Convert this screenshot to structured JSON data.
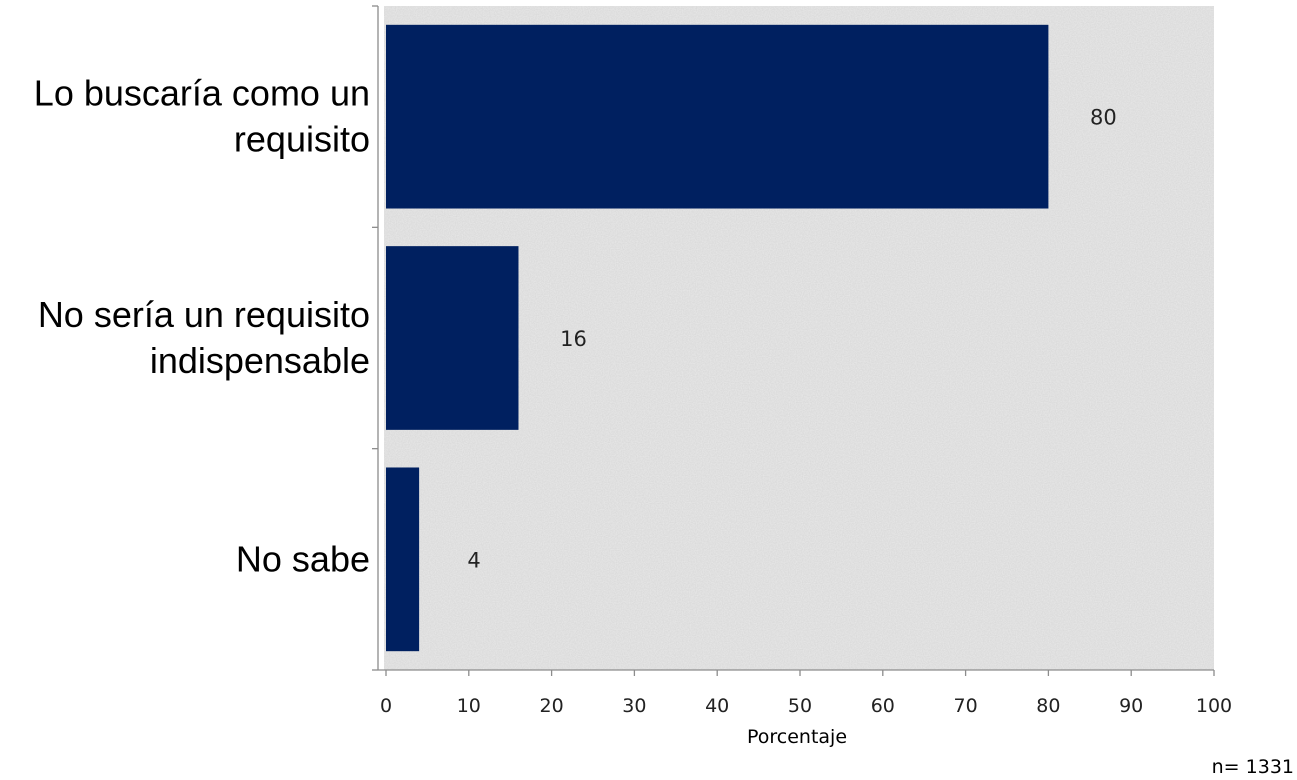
{
  "chart_data": {
    "type": "bar",
    "orientation": "horizontal",
    "categories": [
      [
        "Lo buscaría como un",
        "requisito"
      ],
      [
        "No sería un requisito",
        "indispensable"
      ],
      [
        "No sabe"
      ]
    ],
    "values": [
      80,
      16,
      4
    ],
    "data_labels": [
      "80",
      "16",
      "4"
    ],
    "xlabel": "Porcentaje",
    "ylabel": "",
    "xlim": [
      0,
      100
    ],
    "x_ticks": [
      "0",
      "10",
      "20",
      "30",
      "40",
      "50",
      "60",
      "70",
      "80",
      "90",
      "100"
    ],
    "grid": false,
    "legend": "none",
    "bar_color": "#002060",
    "plot_background": "textured light gray",
    "annotation": "n= 1331"
  }
}
